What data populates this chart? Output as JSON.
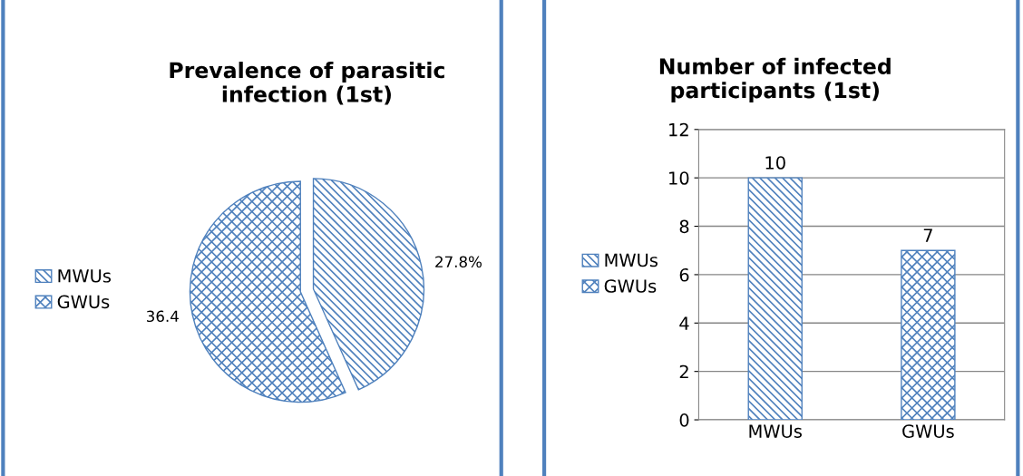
{
  "chart_data": [
    {
      "type": "pie",
      "title": "Prevalence of parasitic infection (1st)",
      "categories": [
        "MWUs",
        "GWUs"
      ],
      "values": [
        27.8,
        36.4
      ],
      "colors": [
        "#4f81bd",
        "#4f81bd"
      ],
      "value_labels": [
        "27.8%",
        "36.4"
      ],
      "legend": "left"
    },
    {
      "type": "bar",
      "title": "Number of infected participants (1st)",
      "categories": [
        "MWUs",
        "GWUs"
      ],
      "series": [
        {
          "name": "MWUs",
          "color": "#4f81bd",
          "values": [
            10,
            null
          ]
        },
        {
          "name": "GWUs",
          "color": "#4f81bd",
          "values": [
            null,
            7
          ]
        }
      ],
      "ylim": [
        0,
        12
      ],
      "yticks": [
        0,
        2,
        4,
        6,
        8,
        10,
        12
      ],
      "grid": "y",
      "data_labels": true,
      "legend": "left"
    }
  ]
}
